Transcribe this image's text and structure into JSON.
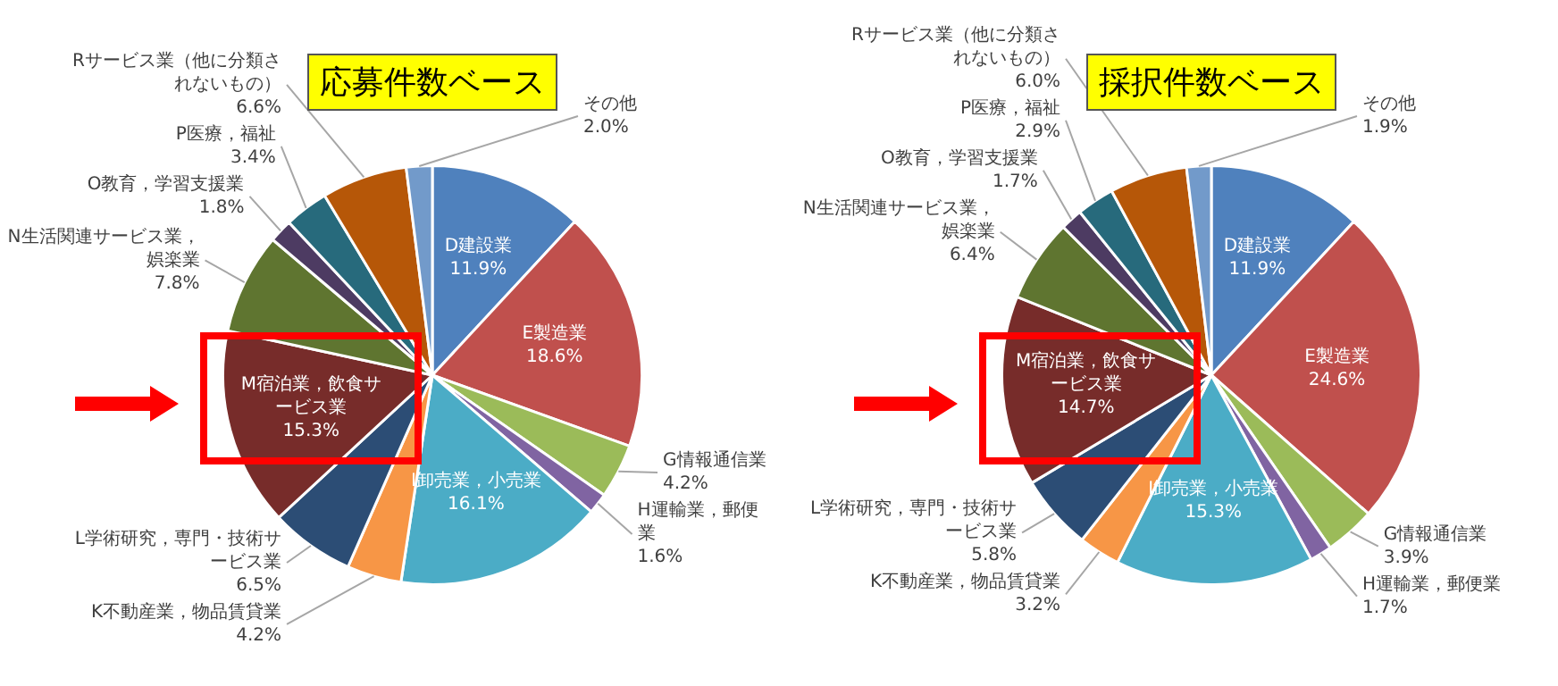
{
  "chart_data": [
    {
      "type": "pie",
      "title": "応募件数ベース",
      "categories": [
        "D建設業",
        "E製造業",
        "G情報通信業",
        "H運輸業，郵便業",
        "I卸売業，小売業",
        "K不動産業，物品賃貸業",
        "L学術研究，専門・技術サービス業",
        "M宿泊業，飲食サービス業",
        "N生活関連サービス業，娯楽業",
        "O教育，学習支援業",
        "P医療，福祉",
        "Rサービス業（他に分類されないもの）",
        "その他"
      ],
      "values": [
        11.9,
        18.6,
        4.2,
        1.6,
        16.1,
        4.2,
        6.5,
        15.3,
        7.8,
        1.8,
        3.4,
        6.6,
        2.0
      ],
      "value_labels": [
        "11.9%",
        "18.6%",
        "4.2%",
        "1.6%",
        "16.1%",
        "4.2%",
        "6.5%",
        "15.3%",
        "7.8%",
        "1.8%",
        "3.4%",
        "6.6%",
        "2.0%"
      ],
      "colors": [
        "#4f81bd",
        "#c0504d",
        "#9bbb59",
        "#8064a2",
        "#4bacc6",
        "#f79646",
        "#2c4d75",
        "#772c2a",
        "#5f7530",
        "#4d3b62",
        "#276a7c",
        "#b65708",
        "#729aca"
      ]
    },
    {
      "type": "pie",
      "title": "採択件数ベース",
      "categories": [
        "D建設業",
        "E製造業",
        "G情報通信業",
        "H運輸業，郵便業",
        "I卸売業，小売業",
        "K不動産業，物品賃貸業",
        "L学術研究，専門・技術サービス業",
        "M宿泊業，飲食サービス業",
        "N生活関連サービス業，娯楽業",
        "O教育，学習支援業",
        "P医療，福祉",
        "Rサービス業（他に分類されないもの）",
        "その他"
      ],
      "values": [
        11.9,
        24.6,
        3.9,
        1.7,
        15.3,
        3.2,
        5.8,
        14.7,
        6.4,
        1.7,
        2.9,
        6.0,
        1.9
      ],
      "value_labels": [
        "11.9%",
        "24.6%",
        "3.9%",
        "1.7%",
        "15.3%",
        "3.2%",
        "5.8%",
        "14.7%",
        "6.4%",
        "1.7%",
        "2.9%",
        "6.0%",
        "1.9%"
      ],
      "colors": [
        "#4f81bd",
        "#c0504d",
        "#9bbb59",
        "#8064a2",
        "#4bacc6",
        "#f79646",
        "#2c4d75",
        "#772c2a",
        "#5f7530",
        "#4d3b62",
        "#276a7c",
        "#b65708",
        "#729aca"
      ]
    }
  ]
}
